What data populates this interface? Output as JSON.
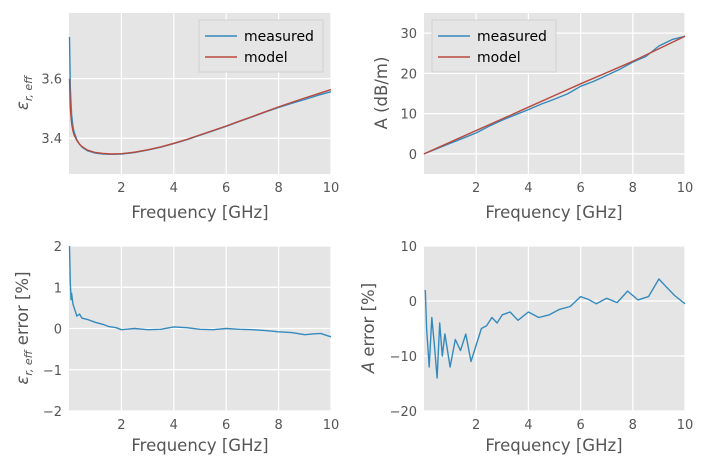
{
  "colors": {
    "background": "#E5E5E5",
    "grid": "#FFFFFF",
    "measured": "#348ABD",
    "model": "#B9493D",
    "text": "#555555"
  },
  "chart_data": [
    {
      "type": "line",
      "xlabel": "Frequency [GHz]",
      "ylabel": "ε_r,eff",
      "xlim": [
        0,
        10
      ],
      "ylim": [
        3.28,
        3.82
      ],
      "xticks": [
        2,
        4,
        6,
        8,
        10
      ],
      "xtick_labels": [
        "2",
        "4",
        "6",
        "8",
        "10"
      ],
      "yticks": [
        3.4,
        3.6
      ],
      "ytick_labels": [
        "3.4",
        "3.6"
      ],
      "grid": true,
      "legend_position": "top-right",
      "series": [
        {
          "name": "measured",
          "color": "#348ABD",
          "x": [
            0.02,
            0.05,
            0.1,
            0.15,
            0.2,
            0.3,
            0.4,
            0.5,
            0.7,
            1.0,
            1.3,
            1.6,
            2.0,
            2.5,
            3.0,
            3.5,
            4.0,
            4.5,
            5.0,
            5.5,
            6.0,
            6.5,
            7.0,
            7.5,
            8.0,
            8.5,
            9.0,
            9.5,
            10.0
          ],
          "y": [
            3.74,
            3.57,
            3.48,
            3.44,
            3.42,
            3.395,
            3.38,
            3.37,
            3.358,
            3.35,
            3.347,
            3.346,
            3.347,
            3.352,
            3.36,
            3.37,
            3.382,
            3.395,
            3.41,
            3.425,
            3.44,
            3.456,
            3.472,
            3.488,
            3.503,
            3.517,
            3.53,
            3.544,
            3.556
          ]
        },
        {
          "name": "model",
          "color": "#B9493D",
          "x": [
            0.02,
            0.05,
            0.1,
            0.15,
            0.2,
            0.3,
            0.4,
            0.5,
            0.7,
            1.0,
            1.3,
            1.6,
            2.0,
            2.5,
            3.0,
            3.5,
            4.0,
            4.5,
            5.0,
            5.5,
            6.0,
            6.5,
            7.0,
            7.5,
            8.0,
            8.5,
            9.0,
            9.5,
            10.0
          ],
          "y": [
            3.6,
            3.5,
            3.45,
            3.425,
            3.41,
            3.392,
            3.38,
            3.372,
            3.36,
            3.352,
            3.349,
            3.347,
            3.348,
            3.353,
            3.361,
            3.371,
            3.383,
            3.396,
            3.411,
            3.426,
            3.441,
            3.457,
            3.473,
            3.489,
            3.505,
            3.52,
            3.535,
            3.549,
            3.563
          ]
        }
      ]
    },
    {
      "type": "line",
      "xlabel": "Frequency [GHz]",
      "ylabel": "A (dB/m)",
      "xlim": [
        0,
        10
      ],
      "ylim": [
        -5,
        35
      ],
      "xticks": [
        2,
        4,
        6,
        8,
        10
      ],
      "xtick_labels": [
        "2",
        "4",
        "6",
        "8",
        "10"
      ],
      "yticks": [
        0,
        10,
        20,
        30
      ],
      "ytick_labels": [
        "0",
        "10",
        "20",
        "30"
      ],
      "grid": true,
      "legend_position": "top-left",
      "series": [
        {
          "name": "measured",
          "color": "#348ABD",
          "x": [
            0.0,
            0.5,
            1.0,
            1.5,
            2.0,
            2.5,
            3.0,
            3.5,
            4.0,
            4.5,
            5.0,
            5.5,
            6.0,
            6.5,
            7.0,
            7.5,
            8.0,
            8.5,
            9.0,
            9.5,
            10.0
          ],
          "y": [
            0.0,
            1.3,
            2.6,
            3.9,
            5.2,
            6.9,
            8.4,
            9.7,
            11.0,
            12.4,
            13.6,
            14.9,
            16.8,
            18.0,
            19.5,
            21.0,
            22.8,
            24.2,
            26.8,
            28.4,
            29.2
          ]
        },
        {
          "name": "model",
          "color": "#B9493D",
          "x": [
            0.0,
            1.0,
            2.0,
            3.0,
            4.0,
            5.0,
            6.0,
            7.0,
            8.0,
            9.0,
            10.0
          ],
          "y": [
            0.0,
            2.9,
            5.8,
            8.7,
            11.6,
            14.5,
            17.4,
            20.2,
            23.0,
            26.1,
            29.2
          ]
        }
      ]
    },
    {
      "type": "line",
      "xlabel": "Frequency [GHz]",
      "ylabel": "ε_r,eff error [%]",
      "xlim": [
        0,
        10
      ],
      "ylim": [
        -2,
        2
      ],
      "xticks": [
        2,
        4,
        6,
        8,
        10
      ],
      "xtick_labels": [
        "2",
        "4",
        "6",
        "8",
        "10"
      ],
      "yticks": [
        -2,
        -1,
        0,
        1,
        2
      ],
      "ytick_labels": [
        "−2",
        "−1",
        "0",
        "1",
        "2"
      ],
      "grid": true,
      "series": [
        {
          "color": "#348ABD",
          "x": [
            0.02,
            0.05,
            0.08,
            0.1,
            0.15,
            0.2,
            0.3,
            0.4,
            0.5,
            0.7,
            1.0,
            1.3,
            1.5,
            1.8,
            2.0,
            2.5,
            3.0,
            3.5,
            4.0,
            4.5,
            5.0,
            5.5,
            6.0,
            6.5,
            7.0,
            7.5,
            8.0,
            8.5,
            9.0,
            9.3,
            9.6,
            10.0
          ],
          "y": [
            2.0,
            1.1,
            0.7,
            0.85,
            0.6,
            0.5,
            0.3,
            0.35,
            0.25,
            0.22,
            0.15,
            0.1,
            0.05,
            0.02,
            -0.03,
            0.0,
            -0.03,
            -0.02,
            0.04,
            0.02,
            -0.02,
            -0.03,
            0.0,
            -0.02,
            -0.03,
            -0.05,
            -0.08,
            -0.1,
            -0.15,
            -0.13,
            -0.12,
            -0.2
          ]
        }
      ]
    },
    {
      "type": "line",
      "xlabel": "Frequency [GHz]",
      "ylabel": "A error [%]",
      "xlim": [
        0,
        10
      ],
      "ylim": [
        -20,
        10
      ],
      "xticks": [
        2,
        4,
        6,
        8,
        10
      ],
      "xtick_labels": [
        "2",
        "4",
        "6",
        "8",
        "10"
      ],
      "yticks": [
        -20,
        -10,
        0,
        10
      ],
      "ytick_labels": [
        "−20",
        "−10",
        "0",
        "10"
      ],
      "grid": true,
      "series": [
        {
          "color": "#348ABD",
          "x": [
            0.05,
            0.1,
            0.2,
            0.3,
            0.4,
            0.5,
            0.6,
            0.7,
            0.8,
            1.0,
            1.2,
            1.4,
            1.6,
            1.8,
            2.0,
            2.2,
            2.4,
            2.6,
            2.8,
            3.0,
            3.3,
            3.6,
            4.0,
            4.4,
            4.8,
            5.2,
            5.6,
            6.0,
            6.3,
            6.6,
            7.0,
            7.4,
            7.8,
            8.2,
            8.6,
            9.0,
            9.3,
            9.6,
            10.0
          ],
          "y": [
            2.0,
            -5.0,
            -12.0,
            -3.0,
            -8.0,
            -14.0,
            -4.0,
            -10.0,
            -6.0,
            -12.0,
            -7.0,
            -9.0,
            -6.0,
            -11.0,
            -8.0,
            -5.0,
            -4.5,
            -3.0,
            -4.0,
            -2.5,
            -2.0,
            -3.5,
            -2.0,
            -3.0,
            -2.5,
            -1.5,
            -1.0,
            0.8,
            0.3,
            -0.5,
            0.5,
            -0.3,
            1.8,
            0.2,
            0.8,
            4.0,
            2.5,
            1.0,
            -0.5
          ]
        }
      ]
    }
  ]
}
